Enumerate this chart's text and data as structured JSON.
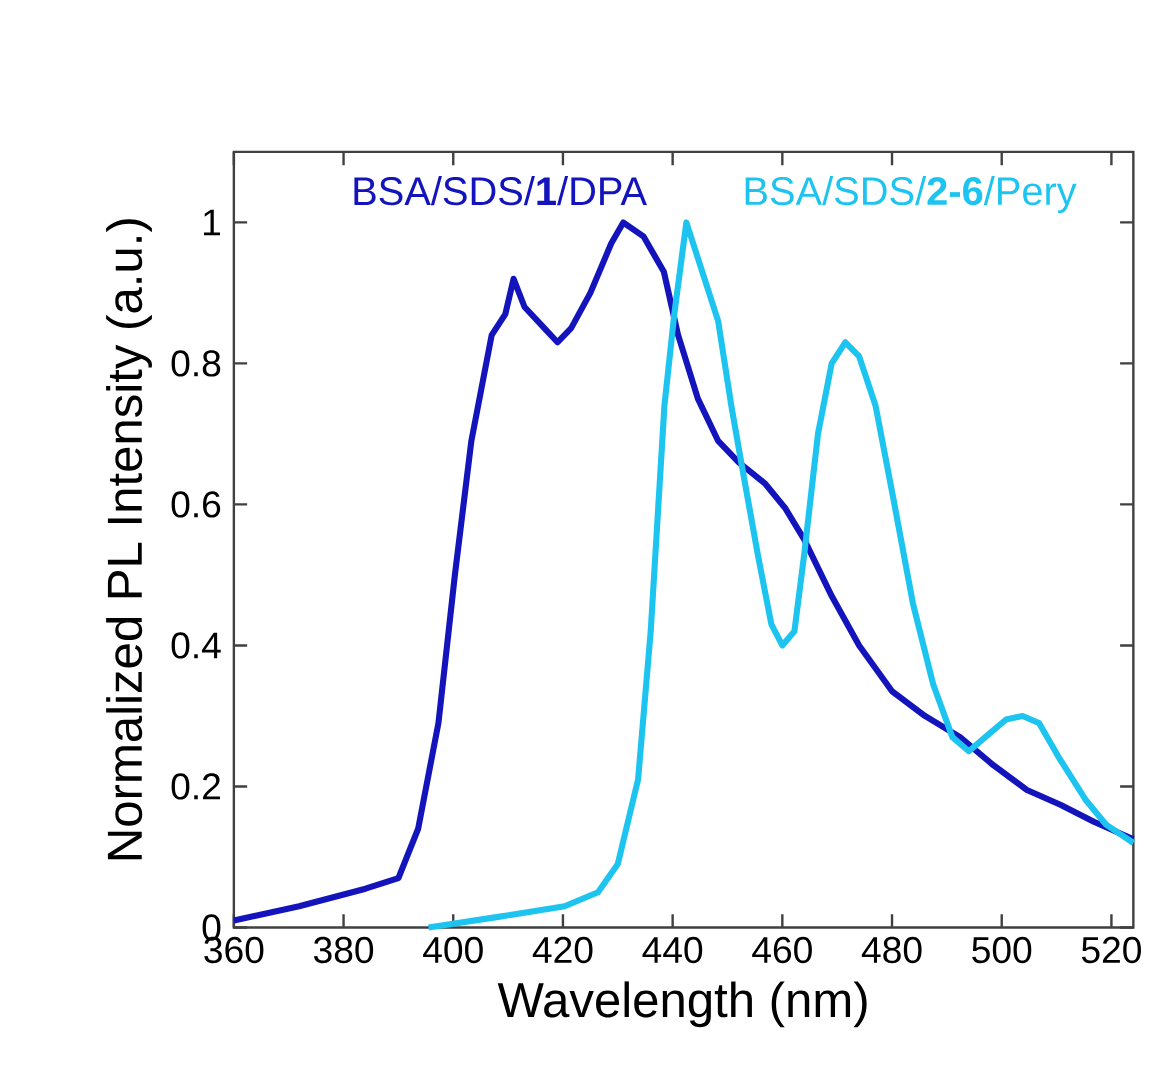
{
  "chart_data": {
    "type": "line",
    "xlabel": "Wavelength (nm)",
    "ylabel": "Normalized PL Intensity (a.u.)",
    "xlim": [
      360,
      524
    ],
    "ylim": [
      0,
      1.1
    ],
    "xticks": [
      360,
      380,
      400,
      420,
      440,
      460,
      480,
      500,
      520
    ],
    "yticks": [
      0,
      0.2,
      0.4,
      0.6,
      0.8,
      1
    ],
    "marker": "none",
    "line_style": "solid",
    "series": [
      {
        "name": "BSA/SDS/**1**/DPA",
        "color": "#1414bc",
        "x": [
          360,
          371.9,
          384,
          390,
          393.6,
          397.3,
          400.3,
          403.3,
          407,
          409.5,
          411,
          413,
          416.6,
          419,
          421.5,
          425,
          428.8,
          431,
          434.7,
          438.4,
          441,
          444.6,
          448.3,
          452,
          456.8,
          460.5,
          464,
          469,
          474,
          480,
          486,
          492.4,
          498.5,
          504.6,
          510.7,
          516.8,
          524
        ],
        "values": [
          0.01,
          0.03,
          0.055,
          0.07,
          0.14,
          0.29,
          0.5,
          0.69,
          0.84,
          0.87,
          0.92,
          0.88,
          0.85,
          0.83,
          0.85,
          0.9,
          0.97,
          1.0,
          0.98,
          0.93,
          0.84,
          0.75,
          0.69,
          0.66,
          0.63,
          0.595,
          0.55,
          0.47,
          0.4,
          0.335,
          0.3,
          0.27,
          0.23,
          0.195,
          0.174,
          0.15,
          0.125
        ]
      },
      {
        "name": "BSA/SDS/**2-6**/Pery",
        "color": "#1ec4f0",
        "x": [
          395.5,
          408.2,
          420.3,
          426.4,
          430,
          433.7,
          436,
          438.5,
          440.3,
          442.5,
          448.3,
          450.7,
          452.5,
          455.5,
          458,
          460,
          462.2,
          464,
          466.5,
          469,
          471.5,
          474,
          477,
          480.2,
          483.8,
          487.5,
          491,
          494,
          497,
          500.8,
          503.8,
          506.8,
          510.5,
          515.4,
          519,
          524
        ],
        "values": [
          0.0,
          0.015,
          0.03,
          0.05,
          0.09,
          0.21,
          0.42,
          0.74,
          0.87,
          1.0,
          0.86,
          0.74,
          0.66,
          0.53,
          0.43,
          0.4,
          0.42,
          0.53,
          0.7,
          0.8,
          0.83,
          0.81,
          0.74,
          0.61,
          0.46,
          0.345,
          0.27,
          0.25,
          0.27,
          0.295,
          0.3,
          0.29,
          0.24,
          0.18,
          0.146,
          0.12
        ]
      }
    ]
  }
}
